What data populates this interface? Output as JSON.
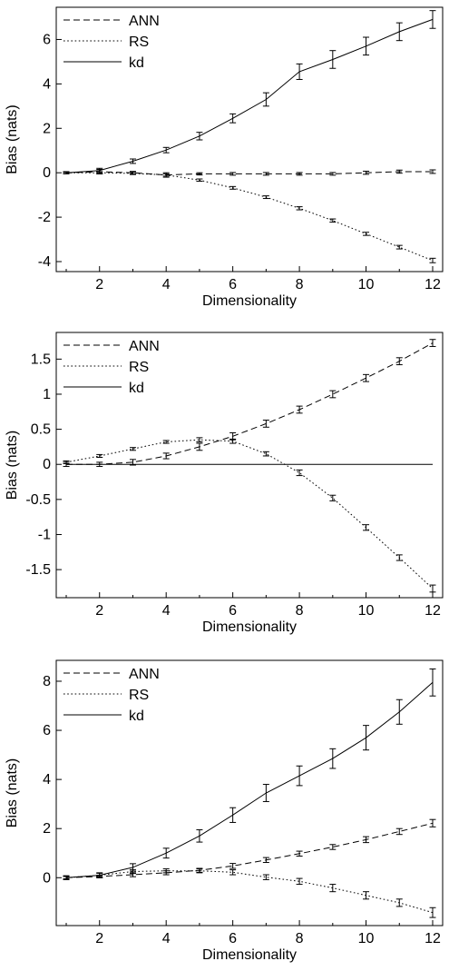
{
  "chart_data": [
    {
      "type": "line",
      "xlabel": "Dimensionality",
      "ylabel": "Bias (nats)",
      "xlim": [
        0.7,
        12.3
      ],
      "ylim": [
        -4.45,
        7.45
      ],
      "xticks": [
        2,
        4,
        6,
        8,
        10,
        12
      ],
      "xtick_labels": [
        "2",
        "4",
        "6",
        "8",
        "10",
        "12"
      ],
      "yticks": [
        -4,
        -2,
        0,
        2,
        4,
        6
      ],
      "ytick_labels": [
        "-4",
        "-2",
        "0",
        "2",
        "4",
        "6"
      ],
      "grid": false,
      "legend_position": "top-left",
      "x": [
        1,
        2,
        3,
        4,
        5,
        6,
        7,
        8,
        9,
        10,
        11,
        12
      ],
      "series": [
        {
          "name": "ANN",
          "style": "dashed",
          "values": [
            0.0,
            0.05,
            0.0,
            -0.1,
            -0.05,
            -0.05,
            -0.05,
            -0.05,
            -0.05,
            0.0,
            0.05,
            0.05
          ],
          "errors": [
            0.04,
            0.1,
            0.06,
            0.1,
            0.05,
            0.06,
            0.06,
            0.06,
            0.06,
            0.07,
            0.07,
            0.08
          ]
        },
        {
          "name": "RS",
          "style": "dotted",
          "values": [
            0.0,
            0.0,
            -0.03,
            -0.1,
            -0.33,
            -0.68,
            -1.1,
            -1.6,
            -2.15,
            -2.75,
            -3.35,
            -3.95
          ],
          "errors": [
            0.03,
            0.05,
            0.05,
            0.05,
            0.05,
            0.06,
            0.06,
            0.07,
            0.07,
            0.07,
            0.08,
            0.1
          ]
        },
        {
          "name": "kd",
          "style": "solid",
          "values": [
            0.0,
            0.1,
            0.52,
            1.02,
            1.65,
            2.45,
            3.3,
            4.55,
            5.1,
            5.7,
            6.35,
            6.9
          ],
          "errors": [
            0.05,
            0.1,
            0.1,
            0.12,
            0.17,
            0.2,
            0.3,
            0.35,
            0.4,
            0.4,
            0.4,
            0.4
          ]
        }
      ]
    },
    {
      "type": "line",
      "xlabel": "Dimensionality",
      "ylabel": "Bias (nats)",
      "xlim": [
        0.7,
        12.3
      ],
      "ylim": [
        -1.9,
        1.88
      ],
      "xticks": [
        2,
        4,
        6,
        8,
        10,
        12
      ],
      "xtick_labels": [
        "2",
        "4",
        "6",
        "8",
        "10",
        "12"
      ],
      "yticks": [
        -1.5,
        -1,
        -0.5,
        0,
        0.5,
        1,
        1.5
      ],
      "ytick_labels": [
        "-1.5",
        "-1",
        "-0.5",
        "0",
        "0.5",
        "1",
        "1.5"
      ],
      "grid": false,
      "legend_position": "top-left",
      "x": [
        1,
        2,
        3,
        4,
        5,
        6,
        7,
        8,
        9,
        10,
        11,
        12
      ],
      "series": [
        {
          "name": "ANN",
          "style": "dashed",
          "values": [
            0.0,
            0.0,
            0.03,
            0.12,
            0.25,
            0.4,
            0.58,
            0.78,
            1.0,
            1.23,
            1.47,
            1.73
          ],
          "errors": [
            0.03,
            0.03,
            0.04,
            0.04,
            0.05,
            0.05,
            0.05,
            0.05,
            0.05,
            0.05,
            0.05,
            0.05
          ]
        },
        {
          "name": "RS",
          "style": "dotted",
          "values": [
            0.03,
            0.12,
            0.22,
            0.32,
            0.35,
            0.33,
            0.15,
            -0.12,
            -0.48,
            -0.9,
            -1.33,
            -1.77
          ],
          "errors": [
            0.02,
            0.02,
            0.02,
            0.02,
            0.03,
            0.03,
            0.03,
            0.04,
            0.04,
            0.04,
            0.04,
            0.05
          ]
        },
        {
          "name": "kd",
          "style": "solid",
          "values": [
            0,
            0,
            0,
            0,
            0,
            0,
            0,
            0,
            0,
            0,
            0,
            0
          ],
          "errors": [
            0,
            0,
            0,
            0,
            0,
            0,
            0,
            0,
            0,
            0,
            0,
            0
          ]
        }
      ]
    },
    {
      "type": "line",
      "xlabel": "Dimensionality",
      "ylabel": "Bias (nats)",
      "xlim": [
        0.7,
        12.3
      ],
      "ylim": [
        -1.95,
        8.85
      ],
      "xticks": [
        2,
        4,
        6,
        8,
        10,
        12
      ],
      "xtick_labels": [
        "2",
        "4",
        "6",
        "8",
        "10",
        "12"
      ],
      "yticks": [
        0,
        2,
        4,
        6,
        8
      ],
      "ytick_labels": [
        "0",
        "2",
        "4",
        "6",
        "8"
      ],
      "grid": false,
      "legend_position": "top-left",
      "x": [
        1,
        2,
        3,
        4,
        5,
        6,
        7,
        8,
        9,
        10,
        11,
        12
      ],
      "series": [
        {
          "name": "ANN",
          "style": "dashed",
          "values": [
            0.0,
            0.05,
            0.12,
            0.2,
            0.3,
            0.48,
            0.72,
            0.98,
            1.25,
            1.55,
            1.88,
            2.22
          ],
          "errors": [
            0.05,
            0.05,
            0.08,
            0.08,
            0.08,
            0.1,
            0.1,
            0.1,
            0.1,
            0.12,
            0.12,
            0.15
          ]
        },
        {
          "name": "RS",
          "style": "dotted",
          "values": [
            0.0,
            0.1,
            0.25,
            0.28,
            0.28,
            0.22,
            0.02,
            -0.15,
            -0.42,
            -0.72,
            -1.02,
            -1.42
          ],
          "errors": [
            0.05,
            0.08,
            0.08,
            0.08,
            0.08,
            0.1,
            0.1,
            0.12,
            0.15,
            0.15,
            0.15,
            0.2
          ]
        },
        {
          "name": "kd",
          "style": "solid",
          "values": [
            0.0,
            0.1,
            0.42,
            1.0,
            1.7,
            2.55,
            3.45,
            4.15,
            4.85,
            5.7,
            6.75,
            7.95
          ],
          "errors": [
            0.08,
            0.1,
            0.15,
            0.2,
            0.25,
            0.3,
            0.35,
            0.4,
            0.4,
            0.5,
            0.5,
            0.55
          ]
        }
      ]
    }
  ]
}
